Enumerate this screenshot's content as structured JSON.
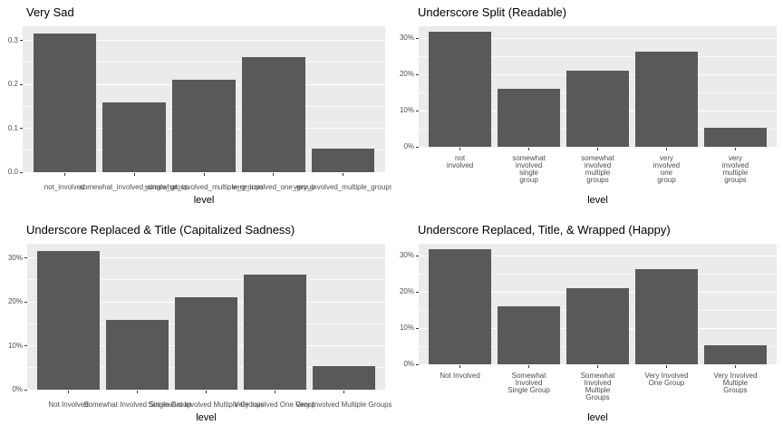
{
  "colors": {
    "bar": "#595959",
    "panel_background": "#EBEBEB",
    "grid_major": "#FFFFFF",
    "grid_minor": "rgba(255,255,255,0.7)",
    "axis_text": "#4D4D4D",
    "tick_mark": "#333333",
    "title_text": "#000000"
  },
  "chart_data": [
    {
      "type": "bar",
      "panel": "top-left",
      "title": "Very Sad",
      "xlabel": "level",
      "ylabel": "",
      "x_label_mode": "overlap",
      "categories": [
        "not_involved",
        "somewhat_involved_single_group",
        "somewhat_involved_multiple_groups",
        "very_involved_one_group",
        "very_involved_multiple_groups"
      ],
      "values": [
        0.317,
        0.159,
        0.211,
        0.263,
        0.053
      ],
      "y_ticks": [
        {
          "value": 0.0,
          "label": "0.0"
        },
        {
          "value": 0.1,
          "label": "0.1"
        },
        {
          "value": 0.2,
          "label": "0.2"
        },
        {
          "value": 0.3,
          "label": "0.3"
        }
      ],
      "ylim": [
        0,
        0.3325
      ],
      "grid": true,
      "legend": "none"
    },
    {
      "type": "bar",
      "panel": "top-right",
      "title": "Underscore Split (Readable)",
      "xlabel": "level",
      "ylabel": "",
      "x_label_mode": "wrap",
      "categories": [
        "not\ninvolved",
        "somewhat\ninvolved\nsingle\ngroup",
        "somewhat\ninvolved\nmultiple\ngroups",
        "very\ninvolved\none\ngroup",
        "very\ninvolved\nmultiple\ngroups"
      ],
      "values": [
        0.317,
        0.159,
        0.211,
        0.263,
        0.053
      ],
      "y_ticks": [
        {
          "value": 0.0,
          "label": "0%"
        },
        {
          "value": 0.1,
          "label": "10%"
        },
        {
          "value": 0.2,
          "label": "20%"
        },
        {
          "value": 0.3,
          "label": "30%"
        }
      ],
      "ylim": [
        0,
        0.3325
      ],
      "grid": true,
      "legend": "none"
    },
    {
      "type": "bar",
      "panel": "bottom-left",
      "title": "Underscore Replaced & Title (Capitalized Sadness)",
      "xlabel": "level",
      "ylabel": "",
      "x_label_mode": "overlap",
      "categories": [
        "Not Involved",
        "Somewhat Involved Single Group",
        "Somewhat Involved Multiple Groups",
        "Very Involved One Group",
        "Very Involved Multiple Groups"
      ],
      "values": [
        0.317,
        0.159,
        0.211,
        0.263,
        0.053
      ],
      "y_ticks": [
        {
          "value": 0.0,
          "label": "0%"
        },
        {
          "value": 0.1,
          "label": "10%"
        },
        {
          "value": 0.2,
          "label": "20%"
        },
        {
          "value": 0.3,
          "label": "30%"
        }
      ],
      "ylim": [
        0,
        0.3325
      ],
      "grid": true,
      "legend": "none"
    },
    {
      "type": "bar",
      "panel": "bottom-right",
      "title": "Underscore Replaced, Title, & Wrapped (Happy)",
      "xlabel": "level",
      "ylabel": "",
      "x_label_mode": "wrap",
      "categories": [
        "Not Involved",
        "Somewhat\nInvolved\nSingle Group",
        "Somewhat\nInvolved\nMultiple\nGroups",
        "Very Involved\nOne Group",
        "Very Involved\nMultiple\nGroups"
      ],
      "values": [
        0.317,
        0.159,
        0.211,
        0.263,
        0.053
      ],
      "y_ticks": [
        {
          "value": 0.0,
          "label": "0%"
        },
        {
          "value": 0.1,
          "label": "10%"
        },
        {
          "value": 0.2,
          "label": "20%"
        },
        {
          "value": 0.3,
          "label": "30%"
        }
      ],
      "ylim": [
        0,
        0.3325
      ],
      "grid": true,
      "legend": "none"
    }
  ]
}
